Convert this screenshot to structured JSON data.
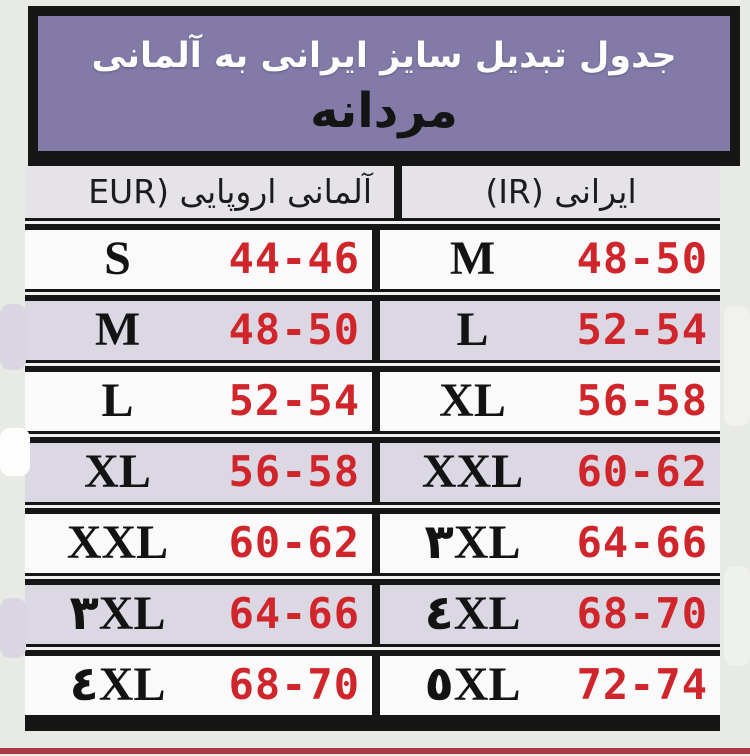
{
  "banner": {
    "title": "جدول تبدیل سایز ایرانی به آلمانی",
    "subtitle": "مردانه"
  },
  "table": {
    "headers": {
      "eur": "آلمانی اروپایی (EUR",
      "ir": "ایرانی (IR)"
    },
    "rows": [
      {
        "eur_size": "S",
        "eur_range": "44-46",
        "ir_size": "M",
        "ir_range": "48-50"
      },
      {
        "eur_size": "M",
        "eur_range": "48-50",
        "ir_size": "L",
        "ir_range": "52-54"
      },
      {
        "eur_size": "L",
        "eur_range": "52-54",
        "ir_size": "XL",
        "ir_range": "56-58"
      },
      {
        "eur_size": "XL",
        "eur_range": "56-58",
        "ir_size": "XXL",
        "ir_range": "60-62"
      },
      {
        "eur_size": "XXL",
        "eur_range": "60-62",
        "ir_size": "۳XL",
        "ir_range": "64-66"
      },
      {
        "eur_size": "۳XL",
        "eur_range": "64-66",
        "ir_size": "٤XL",
        "ir_range": "68-70"
      },
      {
        "eur_size": "٤XL",
        "eur_range": "68-70",
        "ir_size": "٥XL",
        "ir_range": "72-74"
      }
    ]
  },
  "colors": {
    "banner_purple": "#837aa8",
    "row_alt_lavender": "#dcd8e3",
    "row_plain_white": "#fbfafb",
    "number_red": "#d0252b",
    "border_black": "#161616",
    "bottom_accent_red": "#a93a45",
    "page_background": "#e8eae5"
  }
}
